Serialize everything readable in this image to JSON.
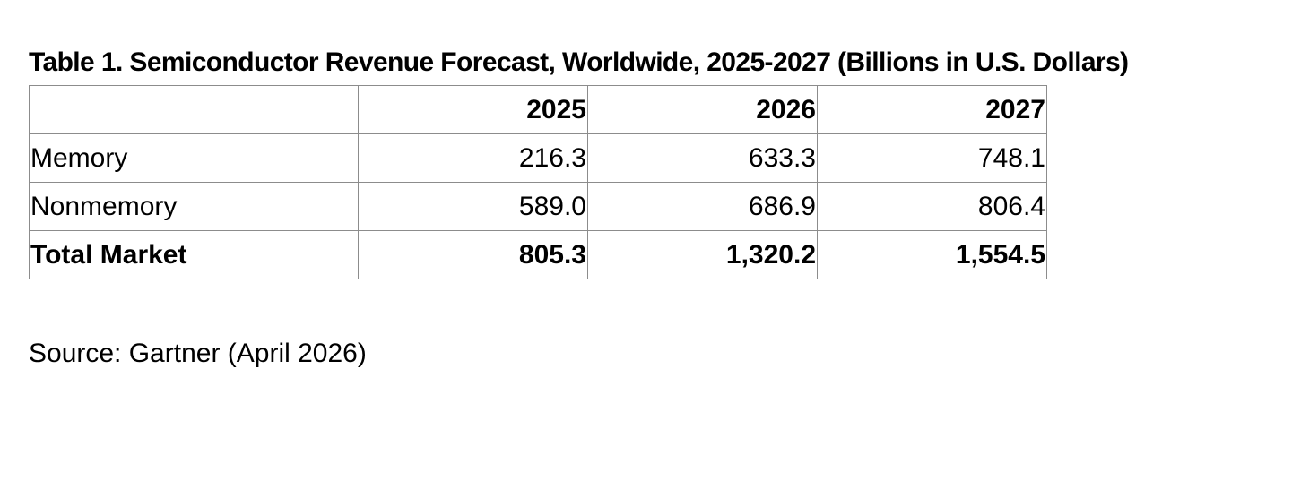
{
  "title": "Table 1. Semiconductor Revenue Forecast, Worldwide, 2025-2027 (Billions in U.S. Dollars)",
  "table": {
    "header": [
      "",
      "2025",
      "2026",
      "2027"
    ],
    "rows": [
      {
        "label": "Memory",
        "values": [
          "216.3",
          "633.3",
          "748.1"
        ],
        "bold": false
      },
      {
        "label": "Nonmemory",
        "values": [
          "589.0",
          "686.9",
          "806.4"
        ],
        "bold": false
      },
      {
        "label": "Total Market",
        "values": [
          "805.3",
          "1,320.2",
          "1,554.5"
        ],
        "bold": true
      }
    ]
  },
  "source": "Source: Gartner (April 2026)"
}
